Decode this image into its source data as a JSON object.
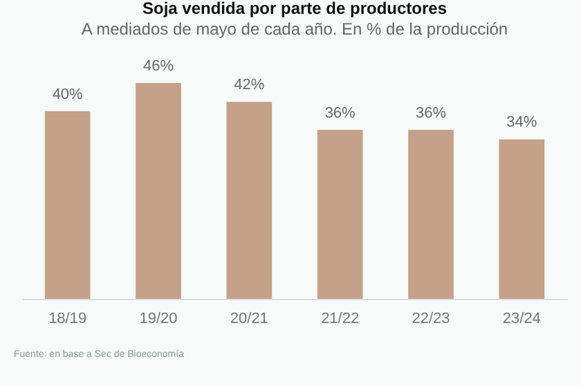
{
  "chart_data": {
    "type": "bar",
    "title": "Soja vendida por parte de productores",
    "subtitle": "A mediados de mayo de cada año. En % de la producción",
    "categories": [
      "18/19",
      "19/20",
      "20/21",
      "21/22",
      "22/23",
      "23/24"
    ],
    "values": [
      40,
      46,
      42,
      36,
      36,
      34
    ],
    "color": "#c4a189",
    "value_labels": [
      "40%",
      "46%",
      "42%",
      "36%",
      "36%",
      "34%"
    ],
    "annotations": [
      "Fuente: en base a Sec de Bioeconomía"
    ]
  }
}
